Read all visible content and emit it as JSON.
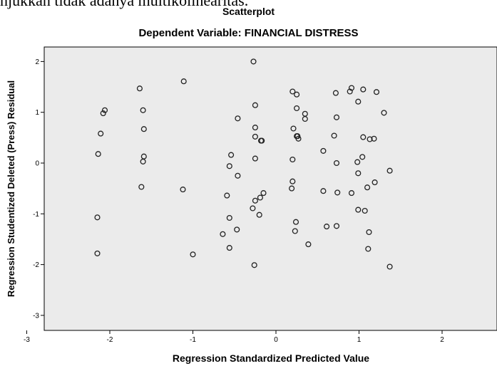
{
  "document": {
    "text_above": "njukkan tidak adanya multikolinearitas."
  },
  "chart_data": {
    "type": "scatter",
    "title": "Scatterplot",
    "subtitle": "Dependent Variable: FINANCIAL DISTRESS",
    "xlabel": "Regression Standardized Predicted Value",
    "ylabel": "Regression Studentized Deleted (Press) Residual",
    "xlim": [
      -3,
      2
    ],
    "ylim": [
      -3,
      2
    ],
    "xticks": [
      -3,
      -2,
      -1,
      0,
      1,
      2
    ],
    "yticks": [
      -3,
      -2,
      -1,
      0,
      1,
      2
    ],
    "xtick_labels": [
      "-3",
      "-2",
      "-1",
      "0",
      "1",
      "2"
    ],
    "ytick_labels": [
      "-3",
      "-2",
      "-1",
      "0",
      "1",
      "2"
    ],
    "grid": false,
    "background": "#ebebeb",
    "marker": "open-circle",
    "points": [
      [
        -0.27,
        2.0
      ],
      [
        -1.64,
        1.47
      ],
      [
        -1.11,
        1.61
      ],
      [
        -2.06,
        1.04
      ],
      [
        -2.08,
        0.98
      ],
      [
        -1.6,
        1.04
      ],
      [
        -2.11,
        0.58
      ],
      [
        -1.59,
        0.67
      ],
      [
        -2.14,
        0.18
      ],
      [
        -1.59,
        0.13
      ],
      [
        -1.6,
        0.03
      ],
      [
        -1.62,
        -0.47
      ],
      [
        -1.12,
        -0.52
      ],
      [
        -2.15,
        -1.07
      ],
      [
        -2.15,
        -1.78
      ],
      [
        -1.0,
        -1.8
      ],
      [
        -0.54,
        0.16
      ],
      [
        -0.56,
        -0.06
      ],
      [
        -0.46,
        -0.25
      ],
      [
        -0.46,
        0.88
      ],
      [
        -0.25,
        1.14
      ],
      [
        -0.25,
        0.7
      ],
      [
        -0.25,
        0.52
      ],
      [
        -0.25,
        0.09
      ],
      [
        -0.18,
        0.44
      ],
      [
        -0.17,
        0.44
      ],
      [
        -0.59,
        -0.64
      ],
      [
        -0.56,
        -1.08
      ],
      [
        -0.47,
        -1.31
      ],
      [
        -0.64,
        -1.4
      ],
      [
        -0.56,
        -1.67
      ],
      [
        -0.28,
        -0.89
      ],
      [
        -0.25,
        -0.74
      ],
      [
        -0.19,
        -0.68
      ],
      [
        -0.15,
        -0.59
      ],
      [
        -0.2,
        -1.02
      ],
      [
        -0.26,
        -2.01
      ],
      [
        0.2,
        1.41
      ],
      [
        0.25,
        1.35
      ],
      [
        0.25,
        1.08
      ],
      [
        0.35,
        0.97
      ],
      [
        0.35,
        0.87
      ],
      [
        0.21,
        0.68
      ],
      [
        0.25,
        0.53
      ],
      [
        0.26,
        0.53
      ],
      [
        0.27,
        0.48
      ],
      [
        0.2,
        0.07
      ],
      [
        0.2,
        -0.36
      ],
      [
        0.19,
        -0.5
      ],
      [
        0.24,
        -1.16
      ],
      [
        0.23,
        -1.34
      ],
      [
        0.39,
        -1.6
      ],
      [
        0.57,
        0.24
      ],
      [
        0.57,
        -0.55
      ],
      [
        0.61,
        -1.25
      ],
      [
        0.72,
        1.38
      ],
      [
        0.73,
        0.9
      ],
      [
        0.7,
        0.54
      ],
      [
        0.73,
        0.0
      ],
      [
        0.74,
        -0.58
      ],
      [
        0.73,
        -1.24
      ],
      [
        0.89,
        1.41
      ],
      [
        0.91,
        1.48
      ],
      [
        0.91,
        -0.59
      ],
      [
        1.05,
        1.45
      ],
      [
        0.99,
        1.21
      ],
      [
        1.05,
        0.51
      ],
      [
        1.13,
        0.47
      ],
      [
        1.18,
        0.48
      ],
      [
        1.04,
        0.12
      ],
      [
        0.98,
        0.02
      ],
      [
        0.99,
        -0.2
      ],
      [
        1.1,
        -0.48
      ],
      [
        1.19,
        -0.38
      ],
      [
        0.99,
        -0.92
      ],
      [
        1.07,
        -0.94
      ],
      [
        1.12,
        -1.36
      ],
      [
        1.11,
        -1.69
      ],
      [
        1.21,
        1.4
      ],
      [
        1.3,
        0.99
      ],
      [
        1.37,
        -0.15
      ],
      [
        1.37,
        -2.04
      ]
    ]
  }
}
